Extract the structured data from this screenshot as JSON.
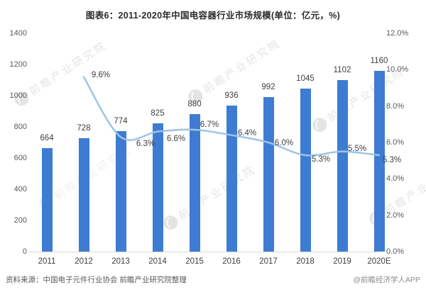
{
  "title": "图表6：2011-2020年中国电容器行业市场规模(单位：亿元，%)",
  "footer": {
    "source_left": "资料来源：中国电子元件行业协会 前瞻产业研究院整理",
    "source_right": "@前瞻经济学人APP"
  },
  "watermark": {
    "text": "前瞻产业研究院",
    "logo": "qianzhan-swoosh-logo"
  },
  "colors": {
    "bar": "#3d7cd2",
    "line": "#9fc4e6",
    "data_label": "#404040",
    "axis_text": "#595959",
    "axis_line": "#d9d9d9",
    "watermark": "#cfcfcf",
    "title_text": "#2b2b2b"
  },
  "chart_data": {
    "type": "bar",
    "title": "图表6：2011-2020年中国电容器行业市场规模(单位：亿元，%)",
    "xlabel": "",
    "ylabel": "",
    "categories": [
      "2011",
      "2012",
      "2013",
      "2014",
      "2015",
      "2016",
      "2017",
      "2018",
      "2019",
      "2020E"
    ],
    "series": [
      {
        "name": "market-size-bars",
        "type": "bar",
        "axis": "left",
        "values": [
          664,
          728,
          774,
          825,
          880,
          936,
          992,
          1045,
          1102,
          1160
        ],
        "labels": [
          "664",
          "728",
          "774",
          "825",
          "880",
          "936",
          "992",
          "1045",
          "1102",
          "1160"
        ]
      },
      {
        "name": "growth-rate-line",
        "type": "line",
        "axis": "right",
        "values": [
          null,
          9.6,
          6.3,
          6.6,
          6.7,
          6.4,
          6.0,
          5.3,
          5.5,
          5.3
        ],
        "labels": [
          null,
          "9.6%",
          "6.3%",
          "6.6%",
          "6.7%",
          "6.4%",
          "6.0%",
          "5.3%",
          "5.5%",
          "5.3%"
        ]
      }
    ],
    "left_axis": {
      "min": 0,
      "max": 1400,
      "step": 200,
      "ticks": [
        "0",
        "200",
        "400",
        "600",
        "800",
        "1000",
        "1200",
        "1400"
      ]
    },
    "right_axis": {
      "min": 0,
      "max": 12,
      "step": 2,
      "ticks": [
        "0.0%",
        "2.0%",
        "4.0%",
        "6.0%",
        "8.0%",
        "10.0%",
        "12.0%"
      ]
    },
    "grid": false,
    "legend": "none"
  }
}
